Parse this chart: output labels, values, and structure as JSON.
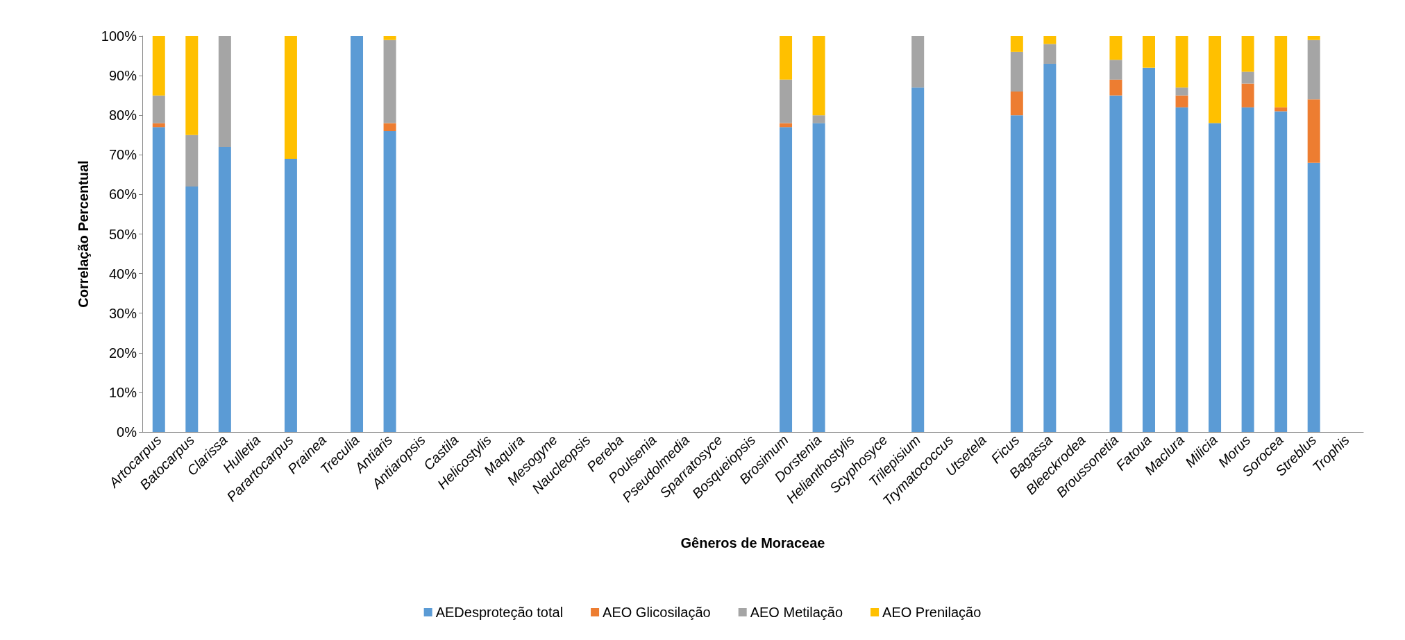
{
  "chart_data": {
    "type": "bar",
    "stacked": true,
    "xlabel": "Gêneros de Moraceae",
    "ylabel": "Correlação Percentual",
    "categories": [
      "Artocarpus",
      "Batocarpus",
      "Clarissa",
      "Hulletia",
      "Parartocarpus",
      "Prainea",
      "Treculia",
      "Antiaris",
      "Antiaropsis",
      "Castila",
      "Helicostylis",
      "Maquira",
      "Mesogyne",
      "Naucleopsis",
      "Pereba",
      "Poulsenia",
      "Pseudolmedia",
      "Sparratosyce",
      "Bosqueiopsis",
      "Brosimum",
      "Dorstenia",
      "Helianthostylis",
      "Scyphosyce",
      "Trilepisium",
      "Trymatococcus",
      "Utsetela",
      "Ficus",
      "Bagassa",
      "Bleeckrodea",
      "Broussonetia",
      "Fatoua",
      "Maclura",
      "Milicia",
      "Morus",
      "Sorocea",
      "Streblus",
      "Trophis"
    ],
    "series": [
      {
        "name": "AEDesproteção total",
        "color": "#5b9bd5",
        "values": [
          77,
          62,
          72,
          0,
          69,
          0,
          100,
          76,
          0,
          0,
          0,
          0,
          0,
          0,
          0,
          0,
          0,
          0,
          0,
          77,
          78,
          0,
          0,
          87,
          0,
          0,
          80,
          93,
          0,
          85,
          92,
          82,
          78,
          82,
          81,
          68,
          0
        ]
      },
      {
        "name": "AEO Glicosilação",
        "color": "#ed7d31",
        "values": [
          1,
          0,
          0,
          0,
          0,
          0,
          0,
          2,
          0,
          0,
          0,
          0,
          0,
          0,
          0,
          0,
          0,
          0,
          0,
          1,
          0,
          0,
          0,
          0,
          0,
          0,
          6,
          0,
          0,
          4,
          0,
          3,
          0,
          6,
          1,
          16,
          0
        ]
      },
      {
        "name": "AEO Metilação",
        "color": "#a5a5a5",
        "values": [
          7,
          13,
          28,
          0,
          0,
          0,
          0,
          21,
          0,
          0,
          0,
          0,
          0,
          0,
          0,
          0,
          0,
          0,
          0,
          11,
          2,
          0,
          0,
          13,
          0,
          0,
          10,
          5,
          0,
          5,
          0,
          2,
          0,
          3,
          0,
          15,
          0
        ]
      },
      {
        "name": "AEO Prenilação",
        "color": "#ffc000",
        "values": [
          15,
          25,
          0,
          0,
          31,
          0,
          0,
          1,
          0,
          0,
          0,
          0,
          0,
          0,
          0,
          0,
          0,
          0,
          0,
          11,
          20,
          0,
          0,
          0,
          0,
          0,
          4,
          2,
          0,
          6,
          8,
          13,
          22,
          9,
          18,
          1,
          0
        ]
      }
    ],
    "ylim": [
      0,
      100
    ],
    "yticks": [
      {
        "value": 0,
        "label": "0%"
      },
      {
        "value": 10,
        "label": "10%"
      },
      {
        "value": 20,
        "label": "20%"
      },
      {
        "value": 30,
        "label": "30%"
      },
      {
        "value": 40,
        "label": "40%"
      },
      {
        "value": 50,
        "label": "50%"
      },
      {
        "value": 60,
        "label": "60%"
      },
      {
        "value": 70,
        "label": "70%"
      },
      {
        "value": 80,
        "label": "80%"
      },
      {
        "value": 90,
        "label": "90%"
      },
      {
        "value": 100,
        "label": "100%"
      }
    ],
    "grid": false,
    "legend": "bottom"
  }
}
